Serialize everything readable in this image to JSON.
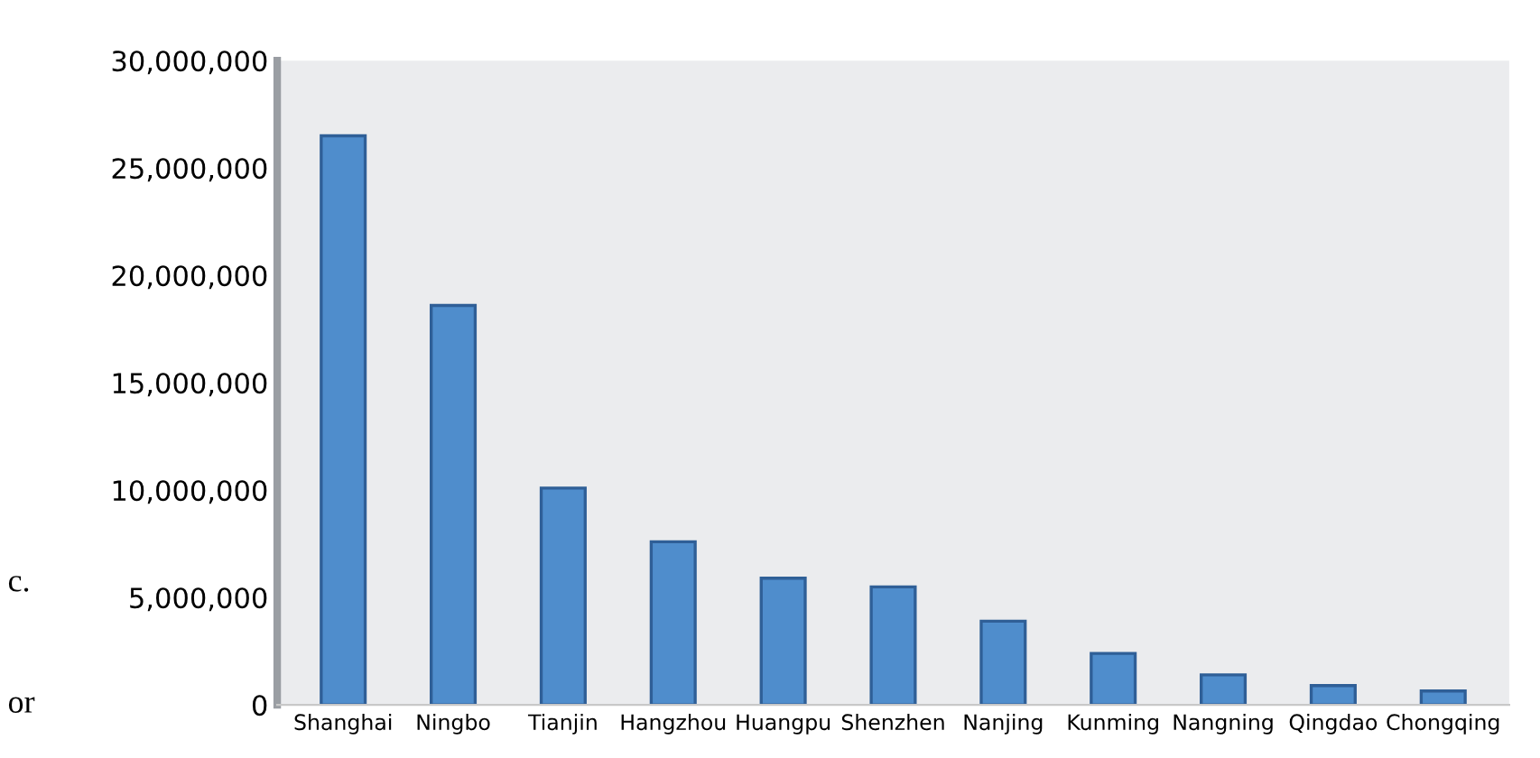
{
  "chart_data": {
    "type": "bar",
    "categories": [
      "Shanghai",
      "Ningbo",
      "Tianjin",
      "Hangzhou",
      "Huangpu",
      "Shenzhen",
      "Nanjing",
      "Kunming",
      "Nangning",
      "Qingdao",
      "Chongqing"
    ],
    "values": [
      26500000,
      18600000,
      10100000,
      7600000,
      5900000,
      5500000,
      3900000,
      2400000,
      1400000,
      900000,
      650000
    ],
    "color": "#4f8dcc",
    "ylim": [
      0,
      30000000
    ],
    "yticks": [
      {
        "value": 0,
        "label": "0"
      },
      {
        "value": 5000000,
        "label": "5,000,000"
      },
      {
        "value": 10000000,
        "label": "10,000,000"
      },
      {
        "value": 15000000,
        "label": "15,000,000"
      },
      {
        "value": 20000000,
        "label": "20,000,000"
      },
      {
        "value": 25000000,
        "label": "25,000,000"
      },
      {
        "value": 30000000,
        "label": "30,000,000"
      }
    ],
    "grid": false,
    "legend": false,
    "annotations": [
      "c.",
      "or"
    ]
  }
}
